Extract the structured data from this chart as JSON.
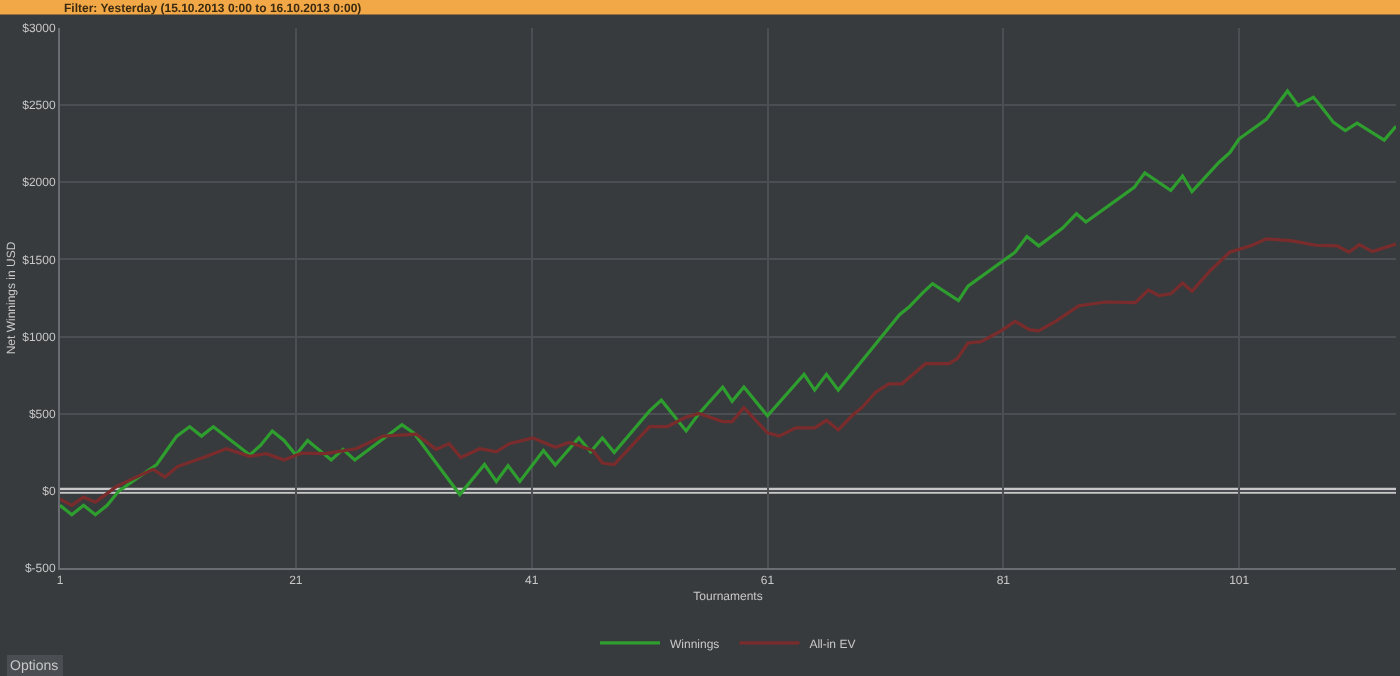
{
  "chart_data": {
    "type": "line",
    "title": "Filter: Yesterday (15.10.2013 0:00 to 16.10.2013 0:00)",
    "xlabel": "Tournaments",
    "ylabel": "Net Winnings in USD",
    "annotations": [
      "Options"
    ],
    "xlim": [
      1,
      114.3
    ],
    "xticks": [
      1,
      21,
      41,
      61,
      81,
      101
    ],
    "ylim": [
      -500,
      3000
    ],
    "yticks": [
      {
        "value": -500,
        "label": "$-500"
      },
      {
        "value": 0,
        "label": "$0"
      },
      {
        "value": 500,
        "label": "$500"
      },
      {
        "value": 1000,
        "label": "$1000"
      },
      {
        "value": 1500,
        "label": "$1500"
      },
      {
        "value": 2000,
        "label": "$2000"
      },
      {
        "value": 2500,
        "label": "$2500"
      },
      {
        "value": 3000,
        "label": "$3000"
      }
    ],
    "grid": true,
    "legend": "bottom",
    "marker": "none",
    "line_style": "solid",
    "ref_lines": [
      {
        "axis": "y",
        "value": 0,
        "color": "#c8c8c8"
      }
    ],
    "series": [
      {
        "name": "Winnings",
        "color": "#2e9e2e",
        "x": [
          1,
          2,
          3,
          4,
          5,
          6,
          9.2,
          10.9,
          12,
          13,
          14,
          17.1,
          18,
          19,
          20,
          21,
          22,
          24,
          25,
          26,
          30,
          31,
          34.9,
          37,
          38,
          39,
          40,
          42,
          43,
          45,
          46,
          47,
          48,
          51,
          52,
          54.1,
          55.2,
          57.2,
          58,
          59,
          61,
          64.1,
          65,
          66,
          67,
          71,
          72.2,
          73,
          74.2,
          75,
          77.2,
          78,
          82,
          83,
          84,
          86,
          87.2,
          88,
          92.1,
          93,
          95.2,
          96.2,
          97,
          99.3,
          100.2,
          101,
          103.3,
          105.1,
          106,
          107.3,
          108,
          109,
          110,
          111,
          113.3,
          114.3
        ],
        "values": [
          -94,
          -155,
          -94,
          -155,
          -94,
          0,
          171,
          355,
          416,
          355,
          416,
          233,
          294,
          388,
          327,
          233,
          327,
          200,
          269,
          200,
          428,
          376,
          -24,
          171,
          61,
          163,
          61,
          261,
          167,
          343,
          253,
          343,
          249,
          518,
          588,
          388,
          502,
          673,
          580,
          673,
          486,
          755,
          653,
          755,
          653,
          1030,
          1142,
          1191,
          1286,
          1343,
          1233,
          1327,
          1547,
          1649,
          1588,
          1702,
          1796,
          1743,
          1967,
          2061,
          1947,
          2041,
          1939,
          2130,
          2192,
          2282,
          2408,
          2592,
          2498,
          2551,
          2486,
          2388,
          2335,
          2384,
          2273,
          2363
        ]
      },
      {
        "name": "All-in EV",
        "color": "#7a2c2c",
        "x": [
          1,
          2,
          3,
          4,
          5.8,
          8.9,
          9.9,
          11,
          13,
          15.1,
          17.1,
          18.5,
          20,
          21.5,
          23.5,
          26.1,
          28.4,
          31.2,
          32.9,
          34,
          35,
          36.6,
          38,
          39.1,
          41.1,
          43,
          44.2,
          46.2,
          47,
          48,
          51,
          52.5,
          54.1,
          55.2,
          57.2,
          58,
          59,
          61,
          62,
          63.4,
          65,
          66,
          67,
          68.2,
          69,
          70.2,
          71.3,
          72.4,
          74.4,
          76.4,
          77.1,
          78,
          79.1,
          80.7,
          82,
          83.2,
          84,
          85.5,
          87.4,
          89.7,
          92.2,
          93.3,
          94.2,
          95.2,
          96.2,
          97,
          98.5,
          100.2,
          102.1,
          103.3,
          105.5,
          107.5,
          109.3,
          110.3,
          111.2,
          112.3,
          114.3
        ],
        "values": [
          -53,
          -94,
          -41,
          -73,
          29,
          139,
          90,
          159,
          212,
          273,
          224,
          241,
          200,
          245,
          241,
          273,
          355,
          367,
          269,
          306,
          216,
          273,
          253,
          306,
          343,
          282,
          314,
          261,
          180,
          171,
          416,
          416,
          478,
          502,
          449,
          449,
          539,
          376,
          355,
          408,
          408,
          457,
          396,
          490,
          539,
          641,
          694,
          694,
          824,
          824,
          857,
          959,
          967,
          1032,
          1098,
          1045,
          1037,
          1102,
          1200,
          1224,
          1220,
          1302,
          1265,
          1277,
          1347,
          1294,
          1424,
          1547,
          1592,
          1633,
          1620,
          1592,
          1588,
          1547,
          1596,
          1551,
          1600
        ]
      }
    ]
  }
}
